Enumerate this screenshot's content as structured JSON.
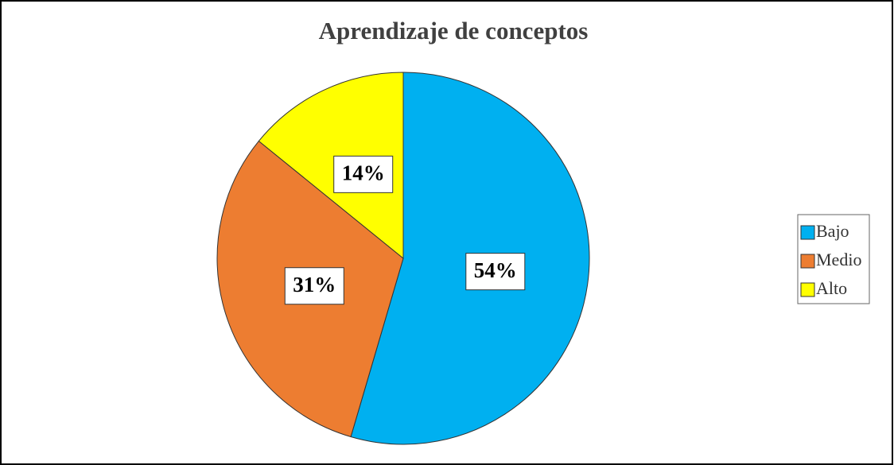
{
  "chart_data": {
    "type": "pie",
    "title": "Aprendizaje de conceptos",
    "categories": [
      "Bajo",
      "Medio",
      "Alto"
    ],
    "values": [
      54,
      31,
      14
    ],
    "value_labels": [
      "54%",
      "31%",
      "14%"
    ],
    "colors": [
      "#00b0f0",
      "#ed7d31",
      "#ffff00"
    ],
    "legend": "right"
  }
}
